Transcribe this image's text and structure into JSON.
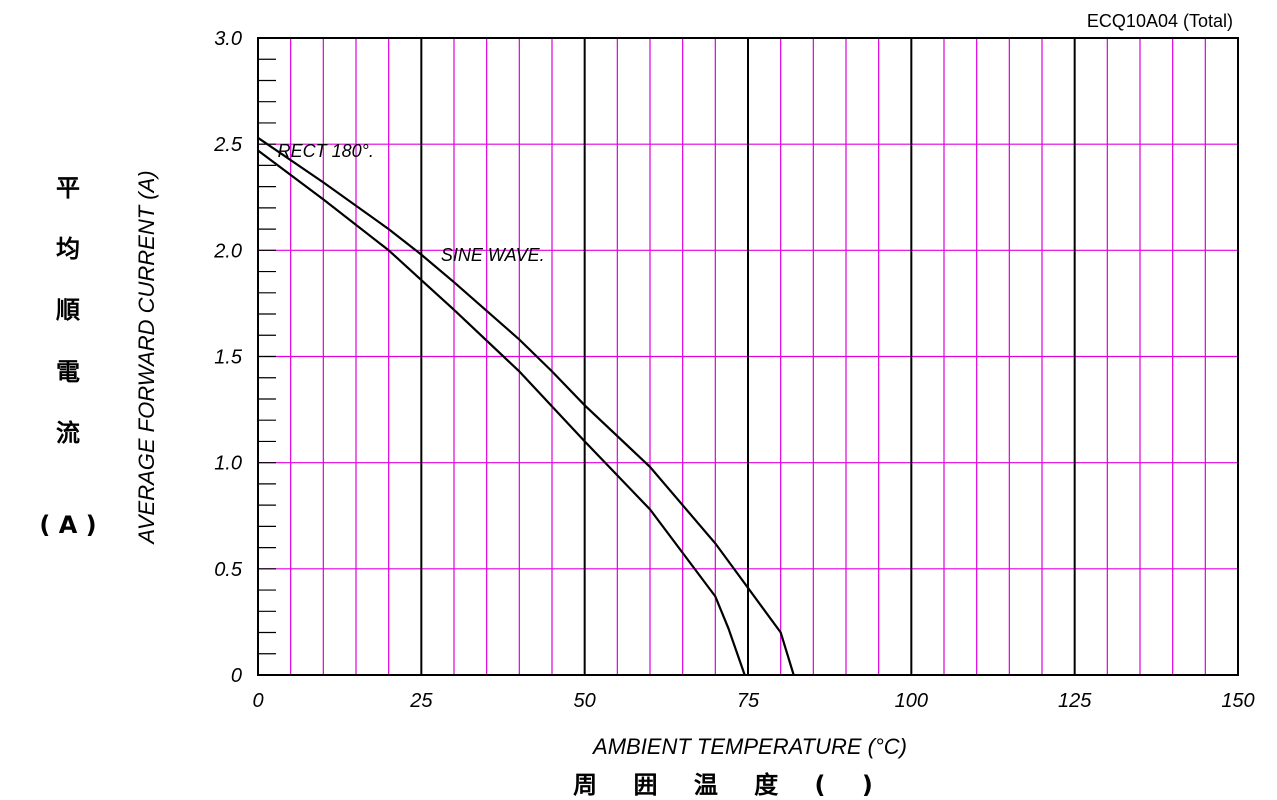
{
  "chart_data": {
    "type": "line",
    "title": "ECQ10A04 (Total)",
    "xlabel": "AMBIENT TEMPERATURE (°C)",
    "xlabel_cjk": "周 囲 温 度 (  )",
    "ylabel": "AVERAGE FORWARD CURRENT (A)",
    "ylabel_cjk": [
      "平",
      "均",
      "順",
      "電",
      "流",
      "( A )"
    ],
    "xlim": [
      0,
      150
    ],
    "ylim": [
      0,
      3.0
    ],
    "x_ticks": [
      0,
      25,
      50,
      75,
      100,
      125,
      150
    ],
    "x_tick_labels": [
      "0",
      "25",
      "50",
      "75",
      "100",
      "125",
      "150"
    ],
    "y_ticks": [
      0,
      0.5,
      1.0,
      1.5,
      2.0,
      2.5,
      3.0
    ],
    "y_tick_labels": [
      "0",
      "0.5",
      "1.0",
      "1.5",
      "2.0",
      "2.5",
      "3.0"
    ],
    "grid": true,
    "minor_grid_color": "#e000e0",
    "major_grid_color": "#000000",
    "series": [
      {
        "name": "RECT 180°.",
        "x": [
          0,
          10,
          20,
          25,
          30,
          40,
          45,
          50,
          60,
          70,
          75,
          80,
          82
        ],
        "y": [
          2.53,
          2.32,
          2.1,
          1.98,
          1.85,
          1.58,
          1.43,
          1.27,
          0.98,
          0.62,
          0.41,
          0.2,
          0.0
        ]
      },
      {
        "name": "SINE WAVE.",
        "x": [
          0,
          10,
          20,
          25,
          30,
          40,
          50,
          60,
          70,
          72,
          74.5
        ],
        "y": [
          2.47,
          2.24,
          2.0,
          1.86,
          1.72,
          1.43,
          1.1,
          0.78,
          0.37,
          0.22,
          0.0
        ]
      }
    ],
    "annotations": [
      {
        "text": "RECT 180°.",
        "x": 3,
        "y": 2.44
      },
      {
        "text": "SINE WAVE.",
        "x": 28,
        "y": 1.95
      }
    ]
  }
}
